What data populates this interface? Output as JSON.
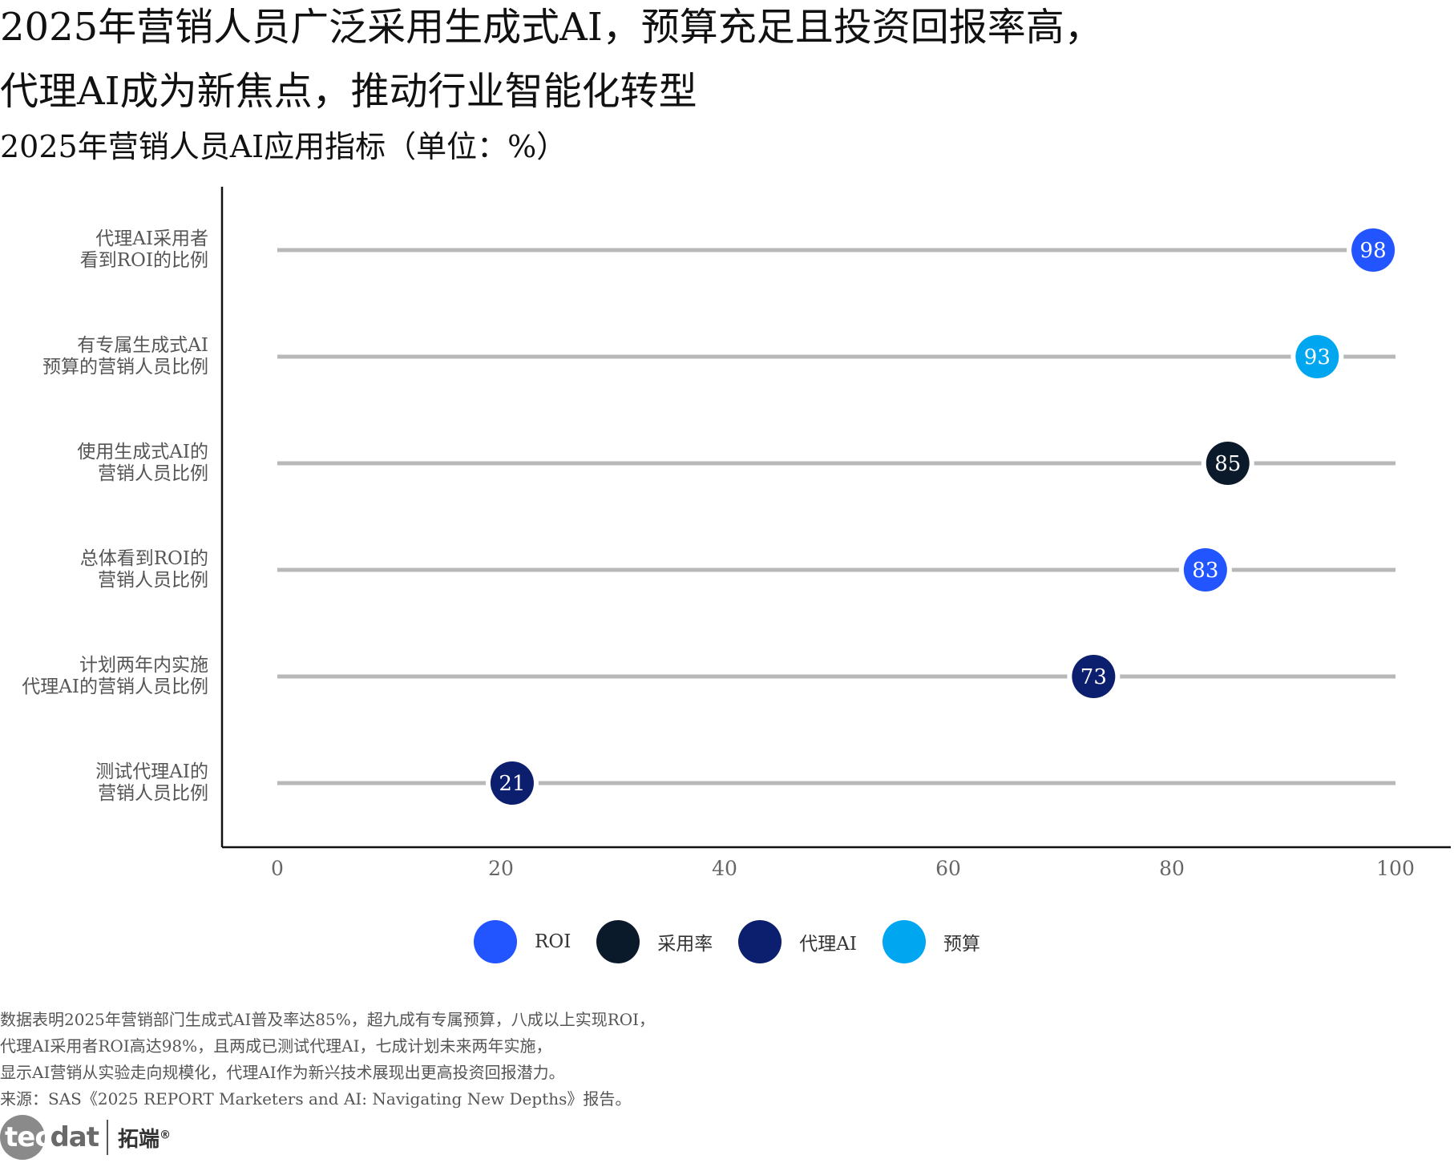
{
  "title": {
    "line1": "2025年营销人员广泛采用生成式AI，预算充足且投资回报率高，",
    "line2": "代理AI成为新焦点，推动行业智能化转型"
  },
  "subtitle": "2025年营销人员AI应用指标（单位：%）",
  "chart_data": {
    "type": "dot",
    "title": "2025年营销人员AI应用指标（单位：%）",
    "xlabel": "",
    "ylabel": "",
    "xlim": [
      0,
      100
    ],
    "xticks": [
      0,
      20,
      40,
      60,
      80,
      100
    ],
    "categories": [
      "代理AI采用者\n看到ROI的比例",
      "有专属生成式AI\n预算的营销人员比例",
      "使用生成式AI的\n营销人员比例",
      "总体看到ROI的\n营销人员比例",
      "计划两年内实施\n代理AI的营销人员比例",
      "测试代理AI的\n营销人员比例"
    ],
    "values": [
      98,
      93,
      85,
      83,
      73,
      21
    ],
    "groups": [
      "ROI",
      "预算",
      "采用率",
      "ROI",
      "代理AI",
      "代理AI"
    ],
    "legend": [
      {
        "name": "ROI",
        "color": "#2255ff"
      },
      {
        "name": "采用率",
        "color": "#0b1a2b"
      },
      {
        "name": "代理AI",
        "color": "#0c1f6e"
      },
      {
        "name": "预算",
        "color": "#00a6f0"
      }
    ],
    "track_color": "#b8b8b8",
    "axis_color": "#111111"
  },
  "footnote": [
    "数据表明2025年营销部门生成式AI普及率达85%，超九成有专属预算，八成以上实现ROI，",
    "代理AI采用者ROI高达98%，且两成已测试代理AI，七成计划未来两年实施，",
    "显示AI营销从实验走向规模化，代理AI作为新兴技术展现出更高投资回报潜力。",
    "来源：SAS《2025 REPORT Marketers and AI: Navigating New Depths》报告。"
  ],
  "logo": {
    "brand_prefix": "tec",
    "brand_suffix": "dat",
    "brand_cn": "拓端",
    "reg_mark": "®"
  }
}
